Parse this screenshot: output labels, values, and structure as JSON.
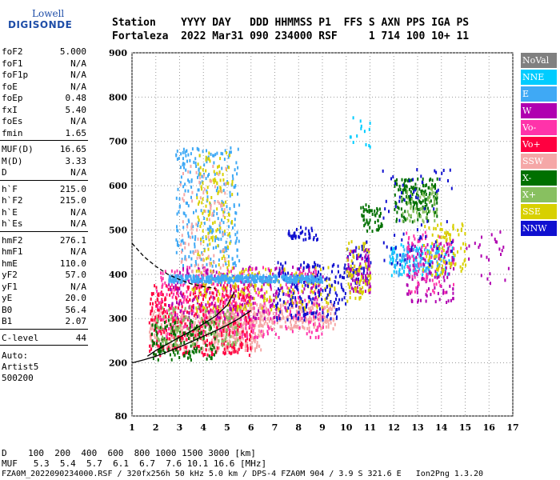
{
  "logo": {
    "line1": "Lowell",
    "line2": "DIGISONDE"
  },
  "header": {
    "row1": "Station    YYYY DAY   DDD HHMMSS P1  FFS S AXN PPS IGA PS",
    "row2": "Fortaleza  2022 Mar31 090 234000 RSF     1 714 100 10+ 11"
  },
  "params": {
    "group1": [
      {
        "k": "foF2",
        "v": "5.000"
      },
      {
        "k": "foF1",
        "v": "N/A"
      },
      {
        "k": "foF1p",
        "v": "N/A"
      },
      {
        "k": "foE",
        "v": "N/A"
      },
      {
        "k": "foEp",
        "v": "0.48"
      },
      {
        "k": "fxI",
        "v": "5.40"
      },
      {
        "k": "foEs",
        "v": "N/A"
      },
      {
        "k": "fmin",
        "v": "1.65"
      }
    ],
    "group2": [
      {
        "k": "MUF(D)",
        "v": "16.65"
      },
      {
        "k": "M(D)",
        "v": "3.33"
      },
      {
        "k": "D",
        "v": "N/A"
      }
    ],
    "group3": [
      {
        "k": "h`F",
        "v": "215.0"
      },
      {
        "k": "h`F2",
        "v": "215.0"
      },
      {
        "k": "h`E",
        "v": "N/A"
      },
      {
        "k": "h`Es",
        "v": "N/A"
      }
    ],
    "group4": [
      {
        "k": "hmF2",
        "v": "276.1"
      },
      {
        "k": "hmF1",
        "v": "N/A"
      },
      {
        "k": "hmE",
        "v": "110.0"
      },
      {
        "k": "yF2",
        "v": "57.0"
      },
      {
        "k": "yF1",
        "v": "N/A"
      },
      {
        "k": "yE",
        "v": "20.0"
      },
      {
        "k": "B0",
        "v": "56.4"
      },
      {
        "k": "B1",
        "v": "2.07"
      }
    ],
    "group5": [
      {
        "k": "C-level",
        "v": "44"
      }
    ],
    "auto": [
      "Auto:",
      "Artist5",
      "500200"
    ]
  },
  "legend": [
    {
      "label": "NoVal",
      "color": "#808080"
    },
    {
      "label": "NNE",
      "color": "#00ccff"
    },
    {
      "label": "E",
      "color": "#3fa9f5"
    },
    {
      "label": "W",
      "color": "#b000b0"
    },
    {
      "label": "Vo-",
      "color": "#ff33aa"
    },
    {
      "label": "Vo+",
      "color": "#ff0040"
    },
    {
      "label": "SSW",
      "color": "#f5a7a7"
    },
    {
      "label": "X-",
      "color": "#007000"
    },
    {
      "label": "X+",
      "color": "#88c060"
    },
    {
      "label": "SSE",
      "color": "#d8d000"
    },
    {
      "label": "NNW",
      "color": "#1010d0"
    }
  ],
  "footer": {
    "line1": "D    100  200  400  600  800 1000 1500 3000 [km]",
    "line2": "MUF   5.3  5.4  5.7  6.1  6.7  7.6 10.1 16.6 [MHz]",
    "line3": "FZA0M_2022090234000.RSF / 320fx256h 50 kHz 5.0 km / DPS-4 FZA0M 904 / 3.9 S 321.6 E   Ion2Png 1.3.20"
  },
  "chart_data": {
    "type": "scatter",
    "title": "",
    "xlabel": "",
    "ylabel": "",
    "xlim": [
      1,
      17
    ],
    "ylim": [
      80,
      900
    ],
    "xticks": [
      1,
      2,
      3,
      4,
      5,
      6,
      7,
      8,
      9,
      10,
      11,
      12,
      13,
      14,
      15,
      16,
      17
    ],
    "yticks": [
      80,
      200,
      300,
      400,
      500,
      600,
      700,
      800,
      900
    ],
    "grid": true,
    "legend_position": "right",
    "traces": [
      {
        "name": "trace-upper-dashed",
        "style": "dashed",
        "color": "#000000",
        "x": [
          1.0,
          1.5,
          2.0,
          2.5,
          3.0,
          3.5,
          4.0,
          4.5
        ],
        "y": [
          470,
          440,
          418,
          400,
          388,
          378,
          372,
          368
        ]
      },
      {
        "name": "trace-lower-solid",
        "style": "solid",
        "color": "#000000",
        "x": [
          1.0,
          1.5,
          2.0,
          2.5,
          3.0,
          3.5,
          4.0,
          4.5,
          5.0,
          5.5,
          6.0
        ],
        "y": [
          200,
          207,
          215,
          225,
          236,
          248,
          260,
          272,
          285,
          300,
          318
        ]
      },
      {
        "name": "trace-virtual-height",
        "style": "solid",
        "color": "#000000",
        "x": [
          1.65,
          2.0,
          2.5,
          3.0,
          3.5,
          4.0,
          4.5,
          5.0,
          5.3
        ],
        "y": [
          215,
          228,
          243,
          258,
          272,
          288,
          305,
          330,
          360
        ]
      }
    ],
    "clusters": [
      {
        "legend": "SSW",
        "x": [
          1.7,
          6.5
        ],
        "y": [
          230,
          320
        ],
        "n": 500
      },
      {
        "legend": "SSW",
        "x": [
          4.5,
          9.5
        ],
        "y": [
          280,
          340
        ],
        "n": 300
      },
      {
        "legend": "Vo+",
        "x": [
          1.7,
          6.0
        ],
        "y": [
          220,
          380
        ],
        "n": 450
      },
      {
        "legend": "Vo-",
        "x": [
          2.0,
          9.0
        ],
        "y": [
          260,
          420
        ],
        "n": 350
      },
      {
        "legend": "W",
        "x": [
          2.5,
          9.0
        ],
        "y": [
          300,
          420
        ],
        "n": 250
      },
      {
        "legend": "X-",
        "x": [
          1.8,
          4.5
        ],
        "y": [
          210,
          300
        ],
        "n": 150
      },
      {
        "legend": "X+",
        "x": [
          2.0,
          5.5
        ],
        "y": [
          240,
          330
        ],
        "n": 120
      },
      {
        "legend": "SSE",
        "x": [
          3.5,
          9.5
        ],
        "y": [
          320,
          420
        ],
        "n": 200
      },
      {
        "legend": "NNW",
        "x": [
          7.0,
          10.0
        ],
        "y": [
          300,
          430
        ],
        "n": 180
      },
      {
        "legend": "E",
        "x": [
          2.5,
          9.0
        ],
        "y": [
          385,
          400
        ],
        "n": 400
      },
      {
        "legend": "E",
        "x": [
          2.8,
          5.5
        ],
        "y": [
          420,
          690
        ],
        "n": 260
      },
      {
        "legend": "SSE",
        "x": [
          3.7,
          5.2
        ],
        "y": [
          420,
          680
        ],
        "n": 120
      },
      {
        "legend": "SSW",
        "x": [
          3.0,
          5.0
        ],
        "y": [
          400,
          650
        ],
        "n": 90
      },
      {
        "legend": "NNW",
        "x": [
          7.5,
          8.8
        ],
        "y": [
          480,
          510
        ],
        "n": 40
      },
      {
        "legend": "NNW",
        "x": [
          10.0,
          11.0
        ],
        "y": [
          380,
          480
        ],
        "n": 60
      },
      {
        "legend": "W",
        "x": [
          10.0,
          11.0
        ],
        "y": [
          360,
          460
        ],
        "n": 80
      },
      {
        "legend": "SSE",
        "x": [
          10.0,
          11.0
        ],
        "y": [
          340,
          480
        ],
        "n": 70
      },
      {
        "legend": "X-",
        "x": [
          10.5,
          11.5
        ],
        "y": [
          500,
          560
        ],
        "n": 50
      },
      {
        "legend": "X-",
        "x": [
          12.0,
          13.8
        ],
        "y": [
          520,
          620
        ],
        "n": 160
      },
      {
        "legend": "X+",
        "x": [
          12.2,
          13.8
        ],
        "y": [
          520,
          600
        ],
        "n": 60
      },
      {
        "legend": "NNE",
        "x": [
          11.8,
          14.5
        ],
        "y": [
          400,
          470
        ],
        "n": 120
      },
      {
        "legend": "E",
        "x": [
          11.8,
          14.0
        ],
        "y": [
          400,
          460
        ],
        "n": 70
      },
      {
        "legend": "W",
        "x": [
          12.5,
          14.5
        ],
        "y": [
          340,
          480
        ],
        "n": 120
      },
      {
        "legend": "Vo-",
        "x": [
          12.5,
          14.5
        ],
        "y": [
          360,
          500
        ],
        "n": 80
      },
      {
        "legend": "SSE",
        "x": [
          13.2,
          15.0
        ],
        "y": [
          400,
          520
        ],
        "n": 90
      },
      {
        "legend": "NNW",
        "x": [
          11.5,
          14.5
        ],
        "y": [
          420,
          640
        ],
        "n": 70
      },
      {
        "legend": "NNE",
        "x": [
          10.0,
          11.0
        ],
        "y": [
          690,
          760
        ],
        "n": 14
      },
      {
        "legend": "W",
        "x": [
          15.0,
          16.8
        ],
        "y": [
          380,
          500
        ],
        "n": 25
      }
    ]
  }
}
